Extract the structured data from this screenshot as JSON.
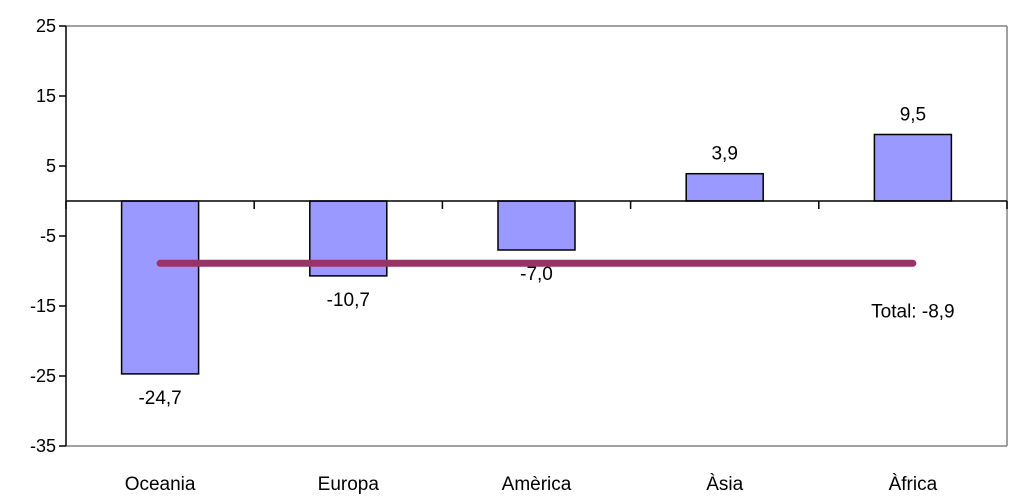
{
  "chart_data": {
    "type": "bar",
    "categories": [
      "Oceania",
      "Europa",
      "Amèrica",
      "Àsia",
      "Àfrica"
    ],
    "values": [
      -24.7,
      -10.7,
      -7.0,
      3.9,
      9.5
    ],
    "data_labels": [
      "-24,7",
      "-10,7",
      "-7,0",
      "3,9",
      "9,5"
    ],
    "ylim": [
      -35,
      25
    ],
    "yticks": [
      25,
      15,
      5,
      -5,
      -15,
      -25,
      -35
    ],
    "ytick_labels": [
      "25",
      "15",
      "5",
      "-5",
      "-15",
      "-25",
      "-35"
    ],
    "grid": false,
    "reference_line": {
      "value": -8.9,
      "label": "Total: -8,9"
    },
    "colors": {
      "bar_fill": "#9999ff",
      "bar_stroke": "#000000",
      "reference_line": "#993366",
      "axis": "#000000",
      "frame": "#808080"
    }
  }
}
